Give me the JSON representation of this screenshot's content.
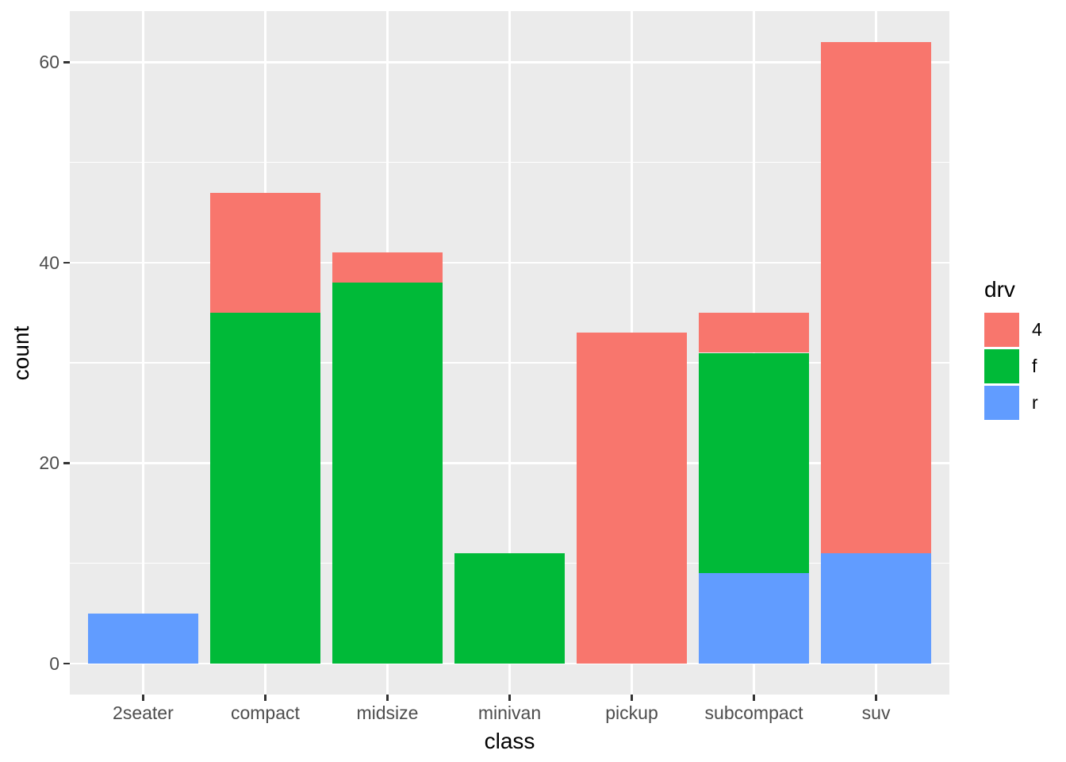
{
  "chart_data": {
    "type": "bar",
    "stacked": true,
    "title": "",
    "xlabel": "class",
    "ylabel": "count",
    "categories": [
      "2seater",
      "compact",
      "midsize",
      "minivan",
      "pickup",
      "subcompact",
      "suv"
    ],
    "series": [
      {
        "name": "4",
        "color": "#F8766D",
        "values": [
          0,
          12,
          3,
          0,
          33,
          4,
          51
        ]
      },
      {
        "name": "f",
        "color": "#00BA38",
        "values": [
          0,
          35,
          38,
          11,
          0,
          22,
          0
        ]
      },
      {
        "name": "r",
        "color": "#619CFF",
        "values": [
          5,
          0,
          0,
          0,
          0,
          9,
          11
        ]
      }
    ],
    "stack_order_bottom_to_top": [
      "r",
      "f",
      "4"
    ],
    "totals": [
      5,
      47,
      41,
      11,
      33,
      35,
      62
    ],
    "y_ticks": [
      0,
      20,
      40,
      60
    ],
    "y_tick_labels": [
      "0",
      "20",
      "40",
      "60"
    ],
    "y_minor_ticks": [
      10,
      30,
      50
    ],
    "ylim": [
      -3.1,
      65.1
    ],
    "grid": true,
    "legend": {
      "title": "drv",
      "position": "right",
      "entries": [
        "4",
        "f",
        "r"
      ]
    },
    "style": {
      "panel_bg": "#EBEBEB",
      "grid_color": "#FFFFFF",
      "axis_text_color": "#4D4D4D",
      "tick_mark_color": "#333333",
      "title_text_color": "#000000",
      "legend_text_color": "#000000",
      "figure_bg": "#FFFFFF"
    }
  }
}
